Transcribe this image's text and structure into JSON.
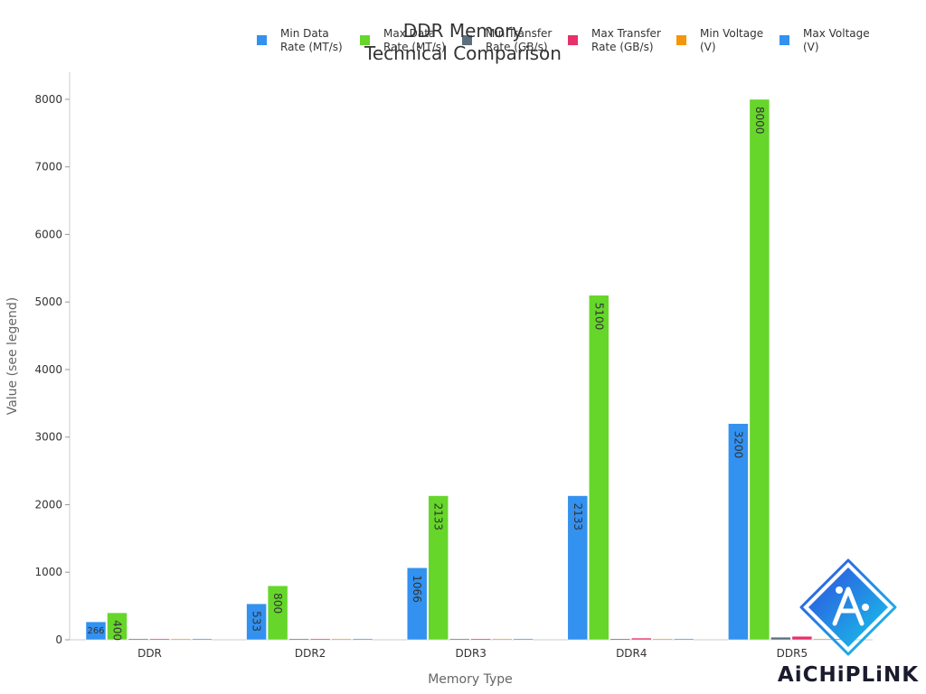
{
  "chart_data": {
    "type": "bar",
    "title": "DDR Memory\nTechnical Comparison",
    "xlabel": "Memory Type",
    "ylabel": "Value (see legend)",
    "ylim": [
      0,
      8400
    ],
    "yticks": [
      0,
      1000,
      2000,
      3000,
      4000,
      5000,
      6000,
      7000,
      8000
    ],
    "grid": false,
    "legend_position": "top",
    "categories": [
      "DDR",
      "DDR2",
      "DDR3",
      "DDR4",
      "DDR5"
    ],
    "series": [
      {
        "name": "Min Data\nRate (MT/s)",
        "color": "#3391f0",
        "values": [
          266,
          533,
          1066,
          2133,
          3200
        ]
      },
      {
        "name": "Max Data\nRate (MT/s)",
        "color": "#66d62b",
        "values": [
          400,
          800,
          2133,
          5100,
          8000
        ]
      },
      {
        "name": "Min Transfer\nRate (GB/s)",
        "color": "#5b6f7e",
        "values": [
          2.1,
          4.2,
          8.5,
          17,
          38.4
        ]
      },
      {
        "name": "Max Transfer\nRate (GB/s)",
        "color": "#e8306b",
        "values": [
          3.2,
          6.4,
          17,
          25.6,
          51.2
        ]
      },
      {
        "name": "Min Voltage\n(V)",
        "color": "#f5960a",
        "values": [
          2.5,
          1.8,
          1.35,
          1.2,
          1.1
        ]
      },
      {
        "name": "Max Voltage\n(V)",
        "color": "#3391f0",
        "values": [
          2.6,
          1.9,
          1.5,
          1.35,
          1.35
        ]
      }
    ]
  },
  "watermark": {
    "text": "AiCHiPLiNK",
    "icon": "aichiplink-logo-icon",
    "gradient_start": "#2f4fe0",
    "gradient_end": "#18c6e8"
  }
}
